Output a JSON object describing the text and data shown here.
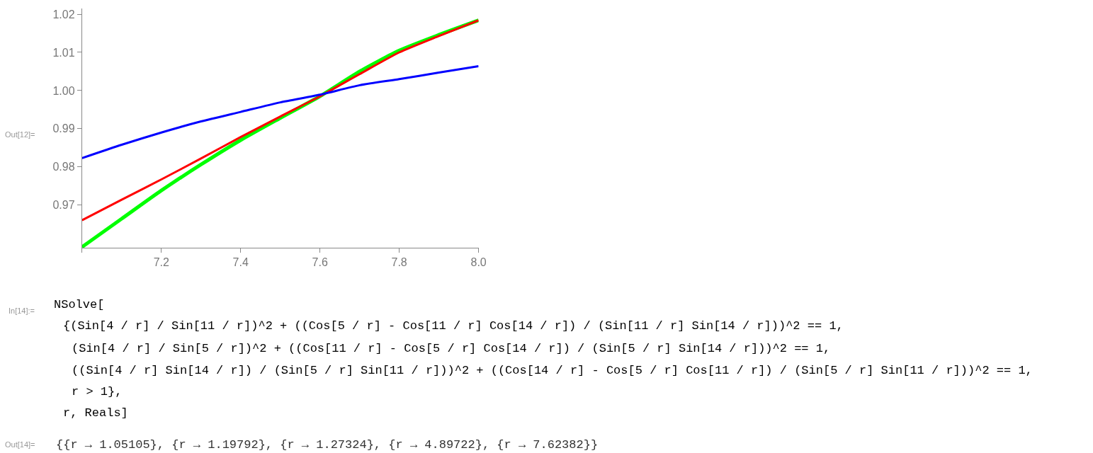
{
  "chart_data": {
    "type": "line",
    "x": [
      7.0,
      7.1,
      7.2,
      7.3,
      7.4,
      7.5,
      7.6,
      7.7,
      7.8,
      7.9,
      8.0
    ],
    "series": [
      {
        "color": "#00ff00",
        "values": [
          0.959,
          0.9664,
          0.9738,
          0.9806,
          0.987,
          0.9928,
          0.9985,
          1.005,
          1.0105,
          1.0146,
          1.0184
        ]
      },
      {
        "color": "#ff0000",
        "values": [
          0.966,
          0.9714,
          0.9767,
          0.9822,
          0.9878,
          0.9932,
          0.9985,
          1.0043,
          1.01,
          1.0143,
          1.0184
        ]
      },
      {
        "color": "#0000ff",
        "values": [
          0.9823,
          0.9858,
          0.989,
          0.9919,
          0.9944,
          0.9969,
          0.9989,
          1.0014,
          1.003,
          1.0047,
          1.0064
        ]
      }
    ],
    "xlim": [
      7.0,
      8.0
    ],
    "xticks": [
      {
        "value": 7.0,
        "label": null
      },
      7.2,
      7.4,
      7.6,
      7.8,
      {
        "value": 8.0,
        "label": "8.0"
      }
    ],
    "ylim": [
      0.9588,
      1.0215
    ],
    "yticks": [
      0.97,
      0.98,
      0.99,
      {
        "value": 1.0,
        "label": "1.00"
      },
      1.01,
      1.02
    ],
    "annotations": [
      "Out[12]=",
      "In[14]:=",
      "NSolve[",
      "{(Sin[4 / r] / Sin[11 / r])^2 + ((Cos[5 / r] - Cos[11 / r] Cos[14 / r]) / (Sin[11 / r] Sin[14 / r]))^2 == 1,",
      "(Sin[4 / r] / Sin[5 / r])^2 + ((Cos[11 / r] - Cos[5 / r] Cos[14 / r]) / (Sin[5 / r] Sin[14 / r]))^2 == 1,",
      "((Sin[4 / r] Sin[14 / r]) / (Sin[5 / r] Sin[11 / r]))^2 + ((Cos[14 / r] - Cos[5 / r] Cos[11 / r]) / (Sin[5 / r] Sin[11 / r]))^2 == 1,",
      "r > 1},",
      "r, Reals]",
      "Out[14]=",
      "{{r → 1.05105}, {r → 1.19792}, {r → 1.27324}, {r → 4.89722}, {r → 7.62382}}"
    ]
  }
}
